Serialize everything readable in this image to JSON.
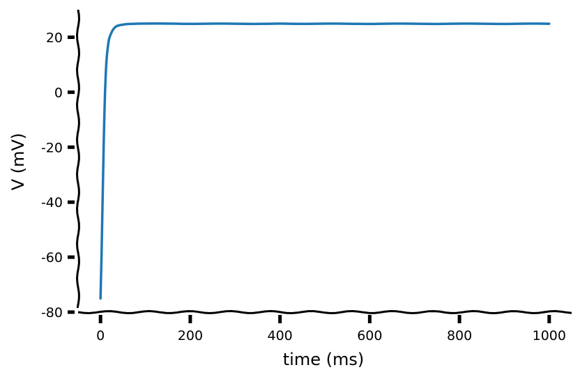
{
  "chart_data": {
    "type": "line",
    "style": "xkcd",
    "xlabel": "time (ms)",
    "ylabel": "V (mV)",
    "xlim": [
      -50,
      1050
    ],
    "ylim": [
      -80,
      30
    ],
    "x_ticks": [
      0,
      200,
      400,
      600,
      800,
      1000
    ],
    "x_tick_labels": [
      "0",
      "200",
      "400",
      "600",
      "800",
      "1000"
    ],
    "y_ticks": [
      -80,
      -60,
      -40,
      -20,
      0,
      20
    ],
    "y_tick_labels": [
      "-80",
      "-60",
      "-40",
      "-20",
      "0",
      "20"
    ],
    "grid": false,
    "line_color": "#1f77b4",
    "series": [
      {
        "x": [
          0,
          2,
          4,
          6,
          8,
          10,
          12,
          14,
          16,
          18,
          20,
          25,
          30,
          35,
          40,
          50,
          60,
          80,
          100,
          150,
          200,
          250,
          300,
          350,
          400,
          450,
          500,
          550,
          600,
          650,
          700,
          750,
          800,
          850,
          900,
          950,
          1000
        ],
        "y": [
          -75,
          -62,
          -45,
          -28,
          -12,
          0,
          8,
          13,
          16,
          18.5,
          20,
          22,
          23.3,
          24,
          24.3,
          24.6,
          24.8,
          24.9,
          25,
          25,
          24.8,
          25,
          24.9,
          24.8,
          25,
          24.8,
          25,
          24.9,
          24.8,
          25,
          24.9,
          24.8,
          25,
          24.9,
          24.8,
          25,
          24.9
        ]
      }
    ]
  }
}
